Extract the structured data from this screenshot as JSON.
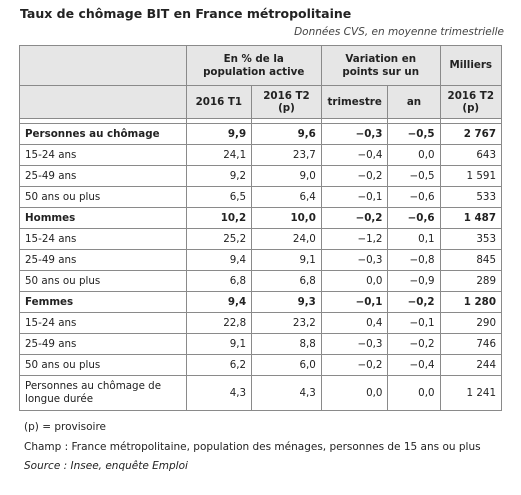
{
  "title": "Taux de chômage BIT en France métropolitaine",
  "subtitle": "Données CVS, en moyenne trimestrielle",
  "header": {
    "group1": "En % de la population active",
    "group2": "Variation en points sur un",
    "group3": "Milliers",
    "col1": "2016 T1",
    "col2": "2016 T2 (p)",
    "col3": "trimestre",
    "col4": "an",
    "col5": "2016 T2 (p)"
  },
  "rows": [
    {
      "label": "Personnes au chômage",
      "t1": "9,9",
      "t2": "9,6",
      "tri": "−0,3",
      "an": "−0,5",
      "milliers": "2 767"
    },
    {
      "label": "15-24 ans",
      "t1": "24,1",
      "t2": "23,7",
      "tri": "−0,4",
      "an": "0,0",
      "milliers": "643"
    },
    {
      "label": "25-49 ans",
      "t1": "9,2",
      "t2": "9,0",
      "tri": "−0,2",
      "an": "−0,5",
      "milliers": "1 591"
    },
    {
      "label": "50 ans ou plus",
      "t1": "6,5",
      "t2": "6,4",
      "tri": "−0,1",
      "an": "−0,6",
      "milliers": "533"
    },
    {
      "label": "Hommes",
      "t1": "10,2",
      "t2": "10,0",
      "tri": "−0,2",
      "an": "−0,6",
      "milliers": "1 487"
    },
    {
      "label": "15-24 ans",
      "t1": "25,2",
      "t2": "24,0",
      "tri": "−1,2",
      "an": "0,1",
      "milliers": "353"
    },
    {
      "label": "25-49 ans",
      "t1": "9,4",
      "t2": "9,1",
      "tri": "−0,3",
      "an": "−0,8",
      "milliers": "845"
    },
    {
      "label": "50 ans ou plus",
      "t1": "6,8",
      "t2": "6,8",
      "tri": "0,0",
      "an": "−0,9",
      "milliers": "289"
    },
    {
      "label": "Femmes",
      "t1": "9,4",
      "t2": "9,3",
      "tri": "−0,1",
      "an": "−0,2",
      "milliers": "1 280"
    },
    {
      "label": "15-24 ans",
      "t1": "22,8",
      "t2": "23,2",
      "tri": "0,4",
      "an": "−0,1",
      "milliers": "290"
    },
    {
      "label": "25-49 ans",
      "t1": "9,1",
      "t2": "8,8",
      "tri": "−0,3",
      "an": "−0,2",
      "milliers": "746"
    },
    {
      "label": "50 ans ou plus",
      "t1": "6,2",
      "t2": "6,0",
      "tri": "−0,2",
      "an": "−0,4",
      "milliers": "244"
    },
    {
      "label": "Personnes au chômage de longue durée",
      "t1": "4,3",
      "t2": "4,3",
      "tri": "0,0",
      "an": "0,0",
      "milliers": "1 241"
    }
  ],
  "notes": {
    "provisoire": "(p) = provisoire",
    "champ": "Champ : France métropolitaine, population des ménages, personnes de 15 ans ou plus",
    "source": "Source : Insee, enquête Emploi"
  }
}
